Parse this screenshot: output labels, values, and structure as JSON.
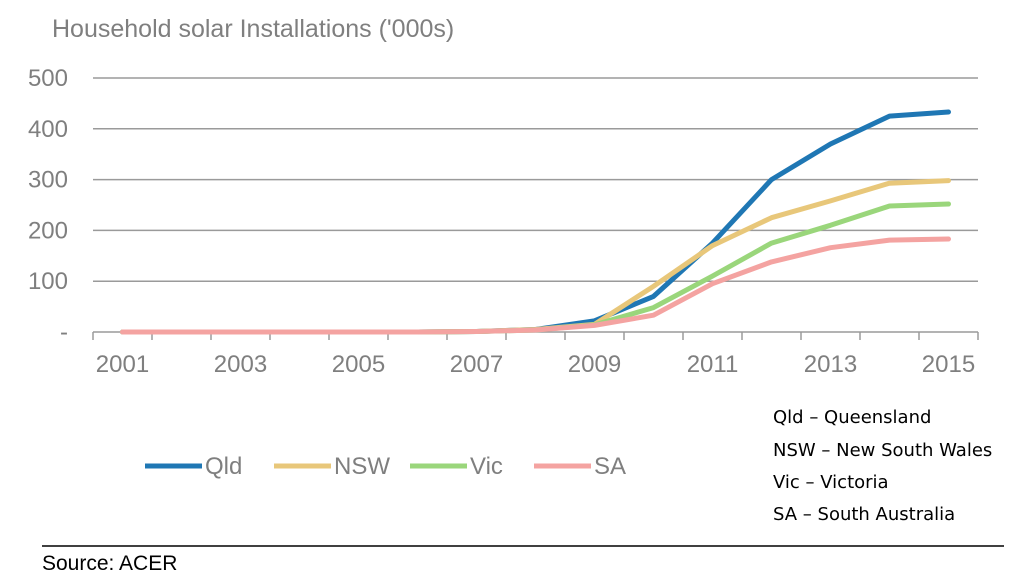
{
  "chart_data": {
    "type": "line",
    "title": "Household solar Installations ('000s)",
    "xlabel": "",
    "ylabel": "",
    "x_tick_labels": [
      "2001",
      "2003",
      "2005",
      "2007",
      "2009",
      "2011",
      "2013",
      "2015"
    ],
    "y_tick_labels": [
      "-",
      "100",
      "200",
      "300",
      "400",
      "500"
    ],
    "y_ticks": [
      0,
      100,
      200,
      300,
      400,
      500
    ],
    "xlim": [
      2000.5,
      2015.5
    ],
    "ylim": [
      0,
      500
    ],
    "grid": "horizontal",
    "legend_position": "bottom-left",
    "x": [
      2001,
      2002,
      2003,
      2004,
      2005,
      2006,
      2007,
      2008,
      2009,
      2010,
      2011,
      2012,
      2013,
      2014,
      2015
    ],
    "series": [
      {
        "name": "Qld",
        "color": "#1f77b4",
        "values": [
          0,
          0,
          0,
          0,
          0,
          0,
          1,
          5,
          22,
          70,
          175,
          300,
          370,
          425,
          433
        ]
      },
      {
        "name": "NSW",
        "color": "#e8c77a",
        "values": [
          0,
          0,
          0,
          0,
          0,
          0,
          1,
          5,
          15,
          90,
          170,
          225,
          258,
          293,
          298
        ]
      },
      {
        "name": "Vic",
        "color": "#9ad67b",
        "values": [
          0,
          0,
          0,
          0,
          0,
          0,
          1,
          4,
          14,
          48,
          110,
          175,
          210,
          248,
          252
        ]
      },
      {
        "name": "SA",
        "color": "#f4a3a1",
        "values": [
          0,
          0,
          0,
          0,
          0,
          0,
          1,
          4,
          13,
          33,
          95,
          138,
          166,
          181,
          183
        ]
      }
    ]
  },
  "notes": [
    "Qld – Queensland",
    "NSW – New South Wales",
    "Vic – Victoria",
    "SA – South Australia"
  ],
  "source": "Source: ACER",
  "colors": {
    "grid": "#9a9a9a",
    "axis": "#9a9a9a",
    "text": "#7f7f7f"
  }
}
